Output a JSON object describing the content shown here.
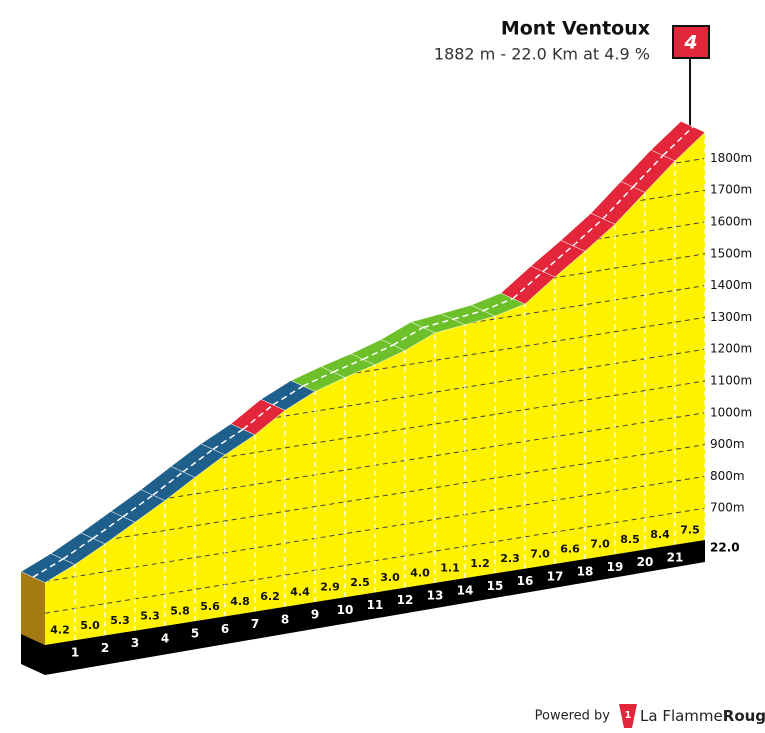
{
  "chart_data": {
    "type": "climb-profile",
    "title": "Mont Ventoux",
    "subtitle": "1882 m - 22.0 Km at 4.9 %",
    "category": "4",
    "x": [
      0,
      1,
      2,
      3,
      4,
      5,
      6,
      7,
      8,
      9,
      10,
      11,
      12,
      13,
      14,
      15,
      16,
      17,
      18,
      19,
      20,
      21,
      22
    ],
    "values": [
      796,
      838,
      888,
      941,
      994,
      1052,
      1108,
      1156,
      1218,
      1262,
      1291,
      1316,
      1346,
      1386,
      1397,
      1409,
      1432,
      1502,
      1568,
      1638,
      1723,
      1807,
      1882
    ],
    "segments": {
      "values": [
        4.2,
        5.0,
        5.3,
        5.3,
        5.8,
        5.6,
        4.8,
        6.2,
        4.4,
        2.9,
        2.5,
        3.0,
        4.0,
        1.1,
        1.2,
        2.3,
        7.0,
        6.6,
        7.0,
        8.5,
        8.4,
        7.5
      ],
      "value_labels": [
        "4.2",
        "5.0",
        "5.3",
        "5.3",
        "5.8",
        "5.6",
        "4.8",
        "6.2",
        "4.4",
        "2.9",
        "2.5",
        "3.0",
        "4.0",
        "1.1",
        "1.2",
        "2.3",
        "7.0",
        "6.6",
        "7.0",
        "8.5",
        "8.4",
        "7.5"
      ],
      "colors": [
        "#1f5f8b",
        "#1f5f8b",
        "#1f5f8b",
        "#1f5f8b",
        "#1f5f8b",
        "#1f5f8b",
        "#1f5f8b",
        "#e3263a",
        "#1f5f8b",
        "#6dc02a",
        "#6dc02a",
        "#6dc02a",
        "#6dc02a",
        "#6dc02a",
        "#6dc02a",
        "#6dc02a",
        "#e3263a",
        "#e3263a",
        "#e3263a",
        "#e3263a",
        "#e3263a",
        "#e3263a"
      ]
    },
    "fill_color": "#fff200",
    "xlim": [
      0,
      22
    ],
    "xticks": [
      1,
      2,
      3,
      4,
      5,
      6,
      7,
      8,
      9,
      10,
      11,
      12,
      13,
      14,
      15,
      16,
      17,
      18,
      19,
      20,
      21,
      {
        "value": 22,
        "label": "22.0"
      }
    ],
    "ylim": [
      600,
      1900
    ],
    "yticks": [
      {
        "value": 700,
        "label": "700m"
      },
      {
        "value": 800,
        "label": "800m"
      },
      {
        "value": 900,
        "label": "900m"
      },
      {
        "value": 1000,
        "label": "1000m"
      },
      {
        "value": 1100,
        "label": "1100m"
      },
      {
        "value": 1200,
        "label": "1200m"
      },
      {
        "value": 1300,
        "label": "1300m"
      },
      {
        "value": 1400,
        "label": "1400m"
      },
      {
        "value": 1500,
        "label": "1500m"
      },
      {
        "value": 1600,
        "label": "1600m"
      },
      {
        "value": 1700,
        "label": "1700m"
      },
      {
        "value": 1800,
        "label": "1800m"
      }
    ],
    "grid": true
  },
  "footer": {
    "powered": "Powered by",
    "brand_light": "La Flamme",
    "brand_bold": "Rouge",
    "logo_digit": "1"
  }
}
